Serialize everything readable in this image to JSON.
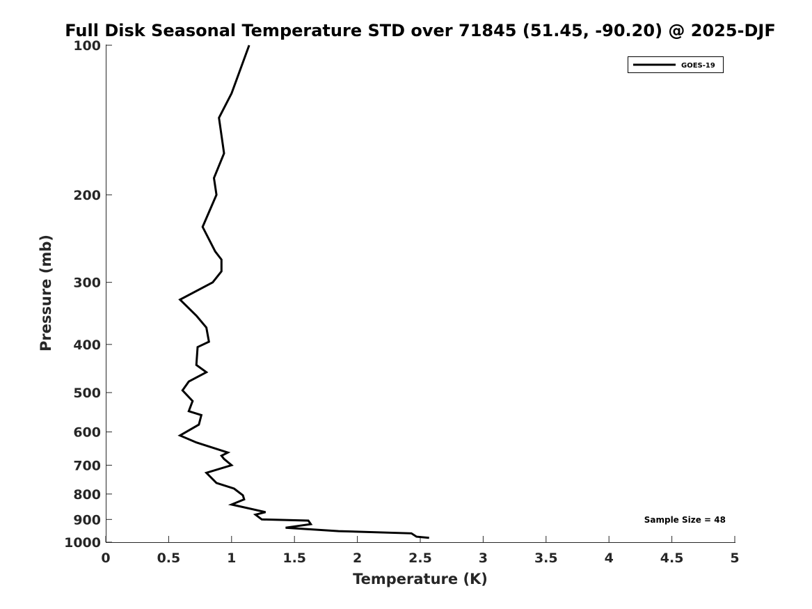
{
  "chart_data": {
    "type": "line",
    "title": "Full Disk Seasonal Temperature STD over 71845 (51.45, -90.20) @ 2025-DJF",
    "xlabel": "Temperature (K)",
    "ylabel": "Pressure (mb)",
    "xlim": [
      0,
      5
    ],
    "ylim": [
      100,
      1000
    ],
    "y_scale": "log",
    "y_reversed": true,
    "x_ticks": [
      0,
      0.5,
      1,
      1.5,
      2,
      2.5,
      3,
      3.5,
      4,
      4.5,
      5
    ],
    "x_tick_labels": [
      "0",
      "0.5",
      "1",
      "1.5",
      "2",
      "2.5",
      "3",
      "3.5",
      "4",
      "4.5",
      "5"
    ],
    "y_ticks": [
      100,
      200,
      300,
      400,
      500,
      600,
      700,
      800,
      900,
      1000
    ],
    "y_tick_labels": [
      "100",
      "200",
      "300",
      "400",
      "500",
      "600",
      "700",
      "800",
      "900",
      "1000"
    ],
    "grid": false,
    "legend_position": "top-right",
    "series": [
      {
        "name": "GOES-19",
        "color": "#000000",
        "x": [
          1.14,
          1.0,
          0.9,
          0.94,
          0.86,
          0.88,
          0.77,
          0.87,
          0.92,
          0.92,
          0.85,
          0.59,
          0.72,
          0.8,
          0.82,
          0.73,
          0.72,
          0.8,
          0.66,
          0.61,
          0.69,
          0.66,
          0.76,
          0.74,
          0.59,
          0.72,
          0.97,
          0.92,
          0.94,
          1.0,
          0.8,
          0.88,
          1.02,
          1.09,
          1.1,
          1.0,
          1.27,
          1.19,
          1.24,
          1.61,
          1.63,
          1.43,
          1.85,
          2.43,
          2.47,
          2.57
        ],
        "y": [
          100,
          125,
          140,
          165,
          185,
          200,
          232,
          260,
          270,
          285,
          300,
          325,
          350,
          370,
          395,
          405,
          440,
          455,
          475,
          495,
          520,
          545,
          555,
          580,
          610,
          630,
          660,
          670,
          680,
          700,
          725,
          760,
          780,
          805,
          820,
          840,
          870,
          880,
          900,
          905,
          920,
          935,
          950,
          960,
          975,
          980
        ]
      }
    ],
    "annotations": [
      "Sample Size = 48"
    ]
  }
}
